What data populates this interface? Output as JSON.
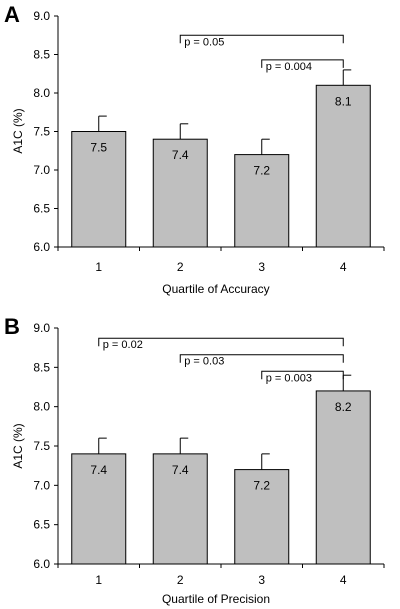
{
  "chart_data": [
    {
      "type": "bar",
      "panel_label": "A",
      "categories": [
        "1",
        "2",
        "3",
        "4"
      ],
      "values": [
        7.5,
        7.4,
        7.2,
        8.1
      ],
      "value_labels": [
        "7.5",
        "7.4",
        "7.2",
        "8.1"
      ],
      "errors": [
        0.2,
        0.2,
        0.2,
        0.2
      ],
      "xlabel": "Quartile of Accuracy",
      "ylabel": "A1C (%)",
      "ylim": [
        6.0,
        9.0
      ],
      "yticks": [
        "6.0",
        "6.5",
        "7.0",
        "7.5",
        "8.0",
        "8.5",
        "9.0"
      ],
      "color": "#bfbfbf",
      "comparisons": [
        {
          "from": 1,
          "to": 3,
          "label": "p = 0.05",
          "y": 8.75
        },
        {
          "from": 2,
          "to": 3,
          "label": "p = 0.004",
          "y": 8.43
        }
      ]
    },
    {
      "type": "bar",
      "panel_label": "B",
      "categories": [
        "1",
        "2",
        "3",
        "4"
      ],
      "values": [
        7.4,
        7.4,
        7.2,
        8.2
      ],
      "value_labels": [
        "7.4",
        "7.4",
        "7.2",
        "8.2"
      ],
      "errors": [
        0.2,
        0.2,
        0.2,
        0.2
      ],
      "xlabel": "Quartile of Precision",
      "ylabel": "A1C (%)",
      "ylim": [
        6.0,
        9.0
      ],
      "yticks": [
        "6.0",
        "6.5",
        "7.0",
        "7.5",
        "8.0",
        "8.5",
        "9.0"
      ],
      "color": "#bfbfbf",
      "comparisons": [
        {
          "from": 0,
          "to": 3,
          "label": "p = 0.02",
          "y": 8.87
        },
        {
          "from": 1,
          "to": 3,
          "label": "p = 0.03",
          "y": 8.66
        },
        {
          "from": 2,
          "to": 3,
          "label": "p = 0.003",
          "y": 8.45
        }
      ]
    }
  ]
}
